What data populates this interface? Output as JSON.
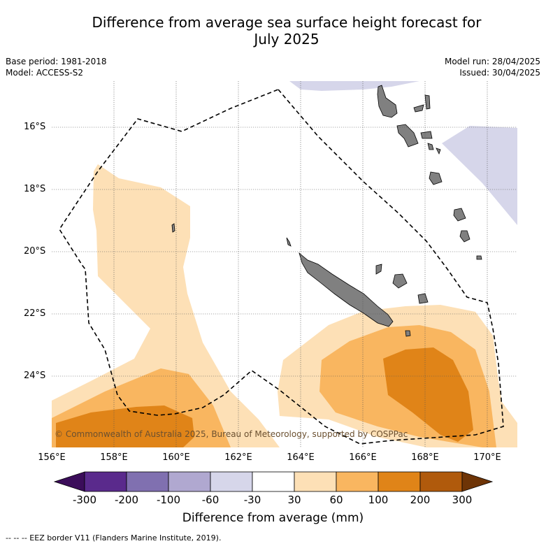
{
  "title_line1": "Difference from average sea surface height forecast for",
  "title_line2": "July 2025",
  "meta": {
    "base_period": "Base period: 1981-2018",
    "model": "Model: ACCESS-S2",
    "model_run": "Model run: 28/04/2025",
    "issued": "Issued: 30/04/2025"
  },
  "map": {
    "lon_range": [
      156,
      171
    ],
    "lat_range": [
      -26.3,
      -14.6
    ],
    "lat_labels": [
      "16°S",
      "18°S",
      "20°S",
      "22°S",
      "24°S"
    ],
    "lon_labels": [
      "156°E",
      "158°E",
      "160°E",
      "162°E",
      "164°E",
      "166°E",
      "168°E",
      "170°E"
    ],
    "copyright": "© Commonwealth of Australia 2025, Bureau of Meteorology, supported by COSPPac"
  },
  "colorbar": {
    "labels": [
      "-300",
      "-200",
      "-100",
      "-60",
      "-30",
      "30",
      "60",
      "100",
      "200",
      "300"
    ],
    "colors": [
      "#3b0d5a",
      "#5a2a8c",
      "#8070b0",
      "#b0a8d0",
      "#d6d6ea",
      "#ffffff",
      "#fde0b6",
      "#f9b660",
      "#e08418",
      "#b05a0c",
      "#6e3406"
    ],
    "title": "Difference from average (mm)"
  },
  "footer": "--  --  -- EEZ border V11 (Flanders Marine Institute, 2019)."
}
